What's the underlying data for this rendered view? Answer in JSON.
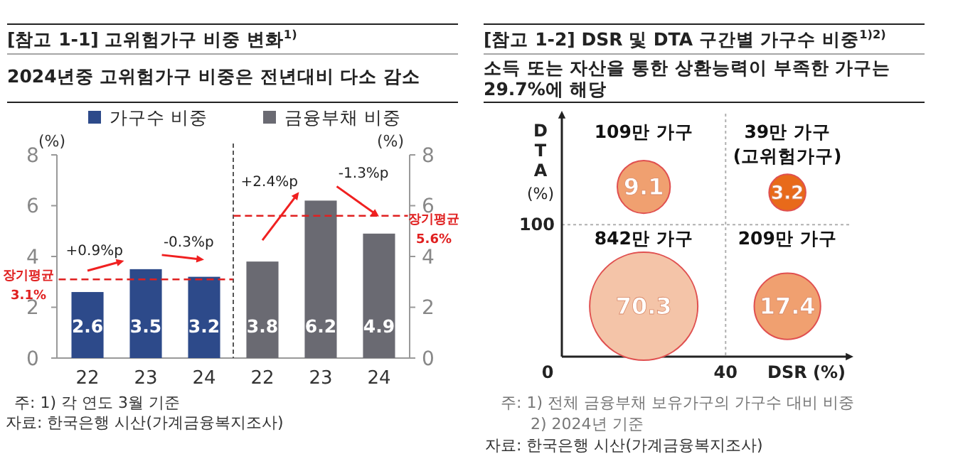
{
  "chart_data": [
    {
      "type": "bar",
      "title": "[참고 1-1] 고위험가구 비중 변화$^{1)}$",
      "subtitle": "2024년중 고위험가구 비중은 전년대비 다소 감소",
      "categories": [
        "22",
        "23",
        "24",
        "22",
        "23",
        "24"
      ],
      "series": [
        {
          "name": "가구수 비중",
          "color": "#2d4a8a",
          "values": [
            2.6,
            3.5,
            3.2,
            null,
            null,
            null
          ]
        },
        {
          "name": "금융부채 비중",
          "color": "#6a6a72",
          "values": [
            null,
            null,
            null,
            3.8,
            6.2,
            4.9
          ],
          "axis": "y2"
        }
      ],
      "ylim": [
        0,
        8
      ],
      "yticks": [
        0,
        2,
        4,
        6,
        8
      ],
      "y2lim": [
        0,
        8
      ],
      "y2ticks": [
        0,
        2,
        4,
        6,
        8
      ],
      "ylabel": "(%)",
      "y2label": "(%)",
      "data_labels": true,
      "legend": "top",
      "ref_lines": [
        {
          "axis": "y",
          "value": 3.1,
          "label": "장기평균 3.1%",
          "color": "#e02020",
          "line_style": "dashed"
        },
        {
          "axis": "y2",
          "value": 5.6,
          "label": "장기평균 5.6%",
          "color": "#e02020",
          "line_style": "dashed"
        }
      ],
      "annotations": [
        "+0.9%p",
        "-0.3%p",
        "+2.4%p",
        "-1.3%p",
        "주: 1) 각 연도 3월 기준",
        "자료: 한국은행 시산(가계금융복지조사)"
      ]
    },
    {
      "type": "other",
      "title": "[참고 1-2] DSR 및 DTA 구간별 가구수 비중$^{1)2)}$",
      "subtitle": "소득 또는 자산을 통한 상환능력이 부족한 가구는 29.7%에 해당",
      "categories": [
        "109만 가구",
        "39만 가구\n(고위험가구)",
        "842만 가구",
        "209만 가구"
      ],
      "values": [
        9.1,
        3.2,
        70.3,
        17.4
      ],
      "colors": [
        "#f0a070",
        "#e86a1a",
        "#f4c4a8",
        "#f0a070"
      ],
      "data_labels": true,
      "xlabel": "DSR (%)",
      "ylabel": "DTA (%)",
      "annotations": [
        "0",
        "40",
        "100",
        "주: 1) 전체 금융부채 보유가구의 가구수 대비 비중",
        "2) 2024년 기준",
        "자료: 한국은행 시산(가계금융복지조사)"
      ]
    }
  ]
}
